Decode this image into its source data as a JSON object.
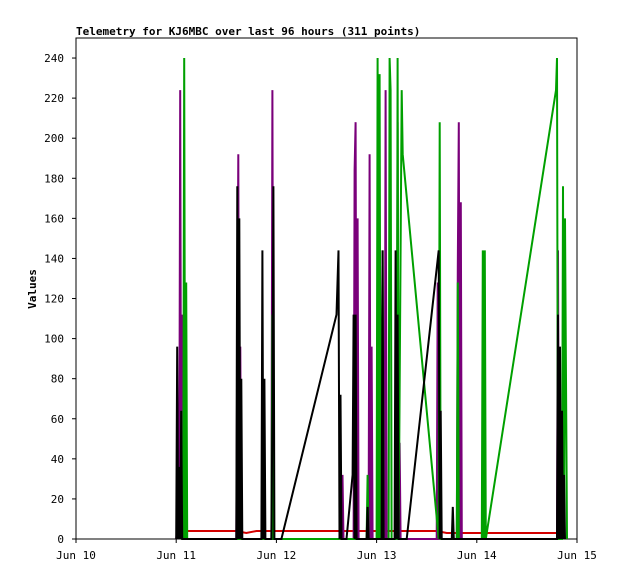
{
  "chart_data": {
    "type": "line",
    "title": "Telemetry for KJ6MBC over last 96 hours (311 points)",
    "xlabel": "",
    "ylabel": "Values",
    "xlim": [
      "Jun 10",
      "Jun 15"
    ],
    "ylim": [
      0,
      250
    ],
    "x_ticks": [
      "Jun 10",
      "Jun 11",
      "Jun 12",
      "Jun 13",
      "Jun 14",
      "Jun 15"
    ],
    "y_ticks": [
      0,
      20,
      40,
      60,
      80,
      100,
      120,
      140,
      160,
      180,
      200,
      220,
      240
    ],
    "grid": false,
    "legend": "none",
    "series": [
      {
        "color": "#d40000",
        "points": [
          [
            1.1,
            4
          ],
          [
            1.3,
            4
          ],
          [
            1.6,
            4
          ],
          [
            1.7,
            3
          ],
          [
            1.8,
            4
          ],
          [
            2.0,
            4
          ],
          [
            2.4,
            4
          ],
          [
            2.6,
            4
          ],
          [
            3.0,
            4
          ],
          [
            3.5,
            4
          ],
          [
            3.6,
            4
          ],
          [
            3.7,
            3
          ],
          [
            4.0,
            3
          ],
          [
            4.2,
            3
          ],
          [
            4.8,
            3
          ]
        ]
      },
      {
        "color": "#7a007a",
        "points": [
          [
            1.0,
            0
          ],
          [
            1.02,
            12
          ],
          [
            1.03,
            0
          ],
          [
            1.04,
            224
          ],
          [
            1.05,
            0
          ],
          [
            1.06,
            112
          ],
          [
            1.07,
            0
          ],
          [
            1.6,
            0
          ],
          [
            1.62,
            192
          ],
          [
            1.63,
            0
          ],
          [
            1.64,
            96
          ],
          [
            1.65,
            0
          ],
          [
            1.95,
            0
          ],
          [
            1.96,
            224
          ],
          [
            1.97,
            0
          ],
          [
            2.65,
            0
          ],
          [
            2.66,
            32
          ],
          [
            2.67,
            0
          ],
          [
            2.77,
            0
          ],
          [
            2.78,
            184
          ],
          [
            2.79,
            208
          ],
          [
            2.8,
            0
          ],
          [
            2.81,
            160
          ],
          [
            2.82,
            0
          ],
          [
            2.92,
            0
          ],
          [
            2.93,
            192
          ],
          [
            2.94,
            0
          ],
          [
            2.95,
            96
          ],
          [
            2.96,
            0
          ],
          [
            3.08,
            0
          ],
          [
            3.09,
            224
          ],
          [
            3.1,
            0
          ],
          [
            3.2,
            0
          ],
          [
            3.21,
            208
          ],
          [
            3.22,
            0
          ],
          [
            3.23,
            48
          ],
          [
            3.24,
            0
          ],
          [
            3.6,
            0
          ],
          [
            3.61,
            128
          ],
          [
            3.62,
            0
          ],
          [
            3.8,
            0
          ],
          [
            3.81,
            136
          ],
          [
            3.82,
            208
          ],
          [
            3.83,
            0
          ],
          [
            3.84,
            168
          ],
          [
            3.85,
            0
          ],
          [
            4.0,
            0
          ],
          [
            4.8,
            0
          ],
          [
            4.81,
            144
          ],
          [
            4.82,
            0
          ]
        ]
      },
      {
        "color": "#00a000",
        "points": [
          [
            1.07,
            0
          ],
          [
            1.08,
            240
          ],
          [
            1.09,
            0
          ],
          [
            1.1,
            128
          ],
          [
            1.11,
            0
          ],
          [
            1.95,
            0
          ],
          [
            1.96,
            112
          ],
          [
            1.97,
            0
          ],
          [
            2.9,
            0
          ],
          [
            2.91,
            32
          ],
          [
            2.92,
            0
          ],
          [
            3.0,
            0
          ],
          [
            3.01,
            240
          ],
          [
            3.02,
            0
          ],
          [
            3.03,
            232
          ],
          [
            3.04,
            0
          ],
          [
            3.06,
            144
          ],
          [
            3.07,
            0
          ],
          [
            3.12,
            0
          ],
          [
            3.13,
            240
          ],
          [
            3.14,
            224
          ],
          [
            3.15,
            0
          ],
          [
            3.2,
            0
          ],
          [
            3.21,
            240
          ],
          [
            3.22,
            0
          ],
          [
            3.25,
            224
          ],
          [
            3.26,
            192
          ],
          [
            3.62,
            0
          ],
          [
            3.63,
            208
          ],
          [
            3.64,
            0
          ],
          [
            3.8,
            0
          ],
          [
            3.81,
            128
          ],
          [
            3.82,
            0
          ],
          [
            4.05,
            0
          ],
          [
            4.06,
            144
          ],
          [
            4.07,
            0
          ],
          [
            4.08,
            144
          ],
          [
            4.09,
            0
          ],
          [
            4.79,
            224
          ],
          [
            4.8,
            240
          ],
          [
            4.81,
            0
          ],
          [
            4.85,
            0
          ],
          [
            4.86,
            176
          ],
          [
            4.87,
            0
          ],
          [
            4.88,
            160
          ],
          [
            4.89,
            80
          ],
          [
            4.9,
            0
          ]
        ]
      },
      {
        "color": "#000000",
        "points": [
          [
            1.0,
            0
          ],
          [
            1.01,
            96
          ],
          [
            1.02,
            0
          ],
          [
            1.03,
            36
          ],
          [
            1.04,
            0
          ],
          [
            1.05,
            64
          ],
          [
            1.06,
            0
          ],
          [
            1.6,
            0
          ],
          [
            1.61,
            176
          ],
          [
            1.62,
            0
          ],
          [
            1.63,
            160
          ],
          [
            1.64,
            0
          ],
          [
            1.65,
            80
          ],
          [
            1.66,
            0
          ],
          [
            1.85,
            0
          ],
          [
            1.86,
            144
          ],
          [
            1.87,
            0
          ],
          [
            1.88,
            80
          ],
          [
            1.89,
            0
          ],
          [
            1.95,
            0
          ],
          [
            1.96,
            64
          ],
          [
            1.97,
            176
          ],
          [
            1.98,
            0
          ],
          [
            2.05,
            0
          ],
          [
            2.6,
            112
          ],
          [
            2.62,
            144
          ],
          [
            2.63,
            0
          ],
          [
            2.64,
            72
          ],
          [
            2.65,
            0
          ],
          [
            2.7,
            0
          ],
          [
            2.76,
            32
          ],
          [
            2.77,
            112
          ],
          [
            2.78,
            0
          ],
          [
            2.79,
            112
          ],
          [
            2.8,
            0
          ],
          [
            2.9,
            0
          ],
          [
            2.91,
            16
          ],
          [
            2.92,
            0
          ],
          [
            3.05,
            0
          ],
          [
            3.06,
            144
          ],
          [
            3.07,
            0
          ],
          [
            3.18,
            0
          ],
          [
            3.19,
            144
          ],
          [
            3.2,
            0
          ],
          [
            3.21,
            112
          ],
          [
            3.22,
            0
          ],
          [
            3.3,
            0
          ],
          [
            3.62,
            144
          ],
          [
            3.63,
            0
          ],
          [
            3.64,
            64
          ],
          [
            3.65,
            0
          ],
          [
            3.75,
            0
          ],
          [
            3.76,
            16
          ],
          [
            3.77,
            0
          ],
          [
            3.78,
            0
          ],
          [
            4.8,
            0
          ],
          [
            4.81,
            112
          ],
          [
            4.82,
            0
          ],
          [
            4.83,
            96
          ],
          [
            4.84,
            0
          ],
          [
            4.85,
            64
          ],
          [
            4.86,
            0
          ],
          [
            4.87,
            32
          ],
          [
            4.88,
            0
          ]
        ]
      }
    ]
  }
}
